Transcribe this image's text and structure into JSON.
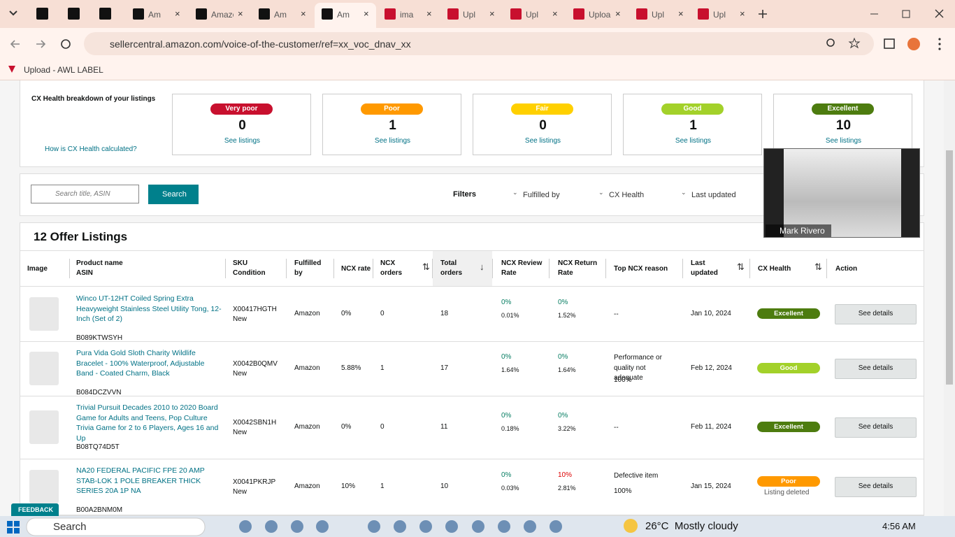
{
  "browser": {
    "tabs": [
      "Am",
      "Amazon",
      "Am",
      "Am",
      "ima",
      "Upl",
      "Upl",
      "Upload",
      "Upl",
      "Upl"
    ],
    "url": "sellercentral.amazon.com/voice-of-the-customer/ref=xx_voc_dnav_xx",
    "bookmark": "Upload - AWL LABEL"
  },
  "health": {
    "title": "CX Health breakdown of your listings",
    "help": "How is CX Health calculated?",
    "cards": [
      {
        "label": "Very poor",
        "color": "#c8102e",
        "count": "0",
        "link": "See listings"
      },
      {
        "label": "Poor",
        "color": "#ff9900",
        "count": "1",
        "link": "See listings"
      },
      {
        "label": "Fair",
        "color": "#ffd000",
        "count": "0",
        "link": "See listings"
      },
      {
        "label": "Good",
        "color": "#a3d12a",
        "count": "1",
        "link": "See listings"
      },
      {
        "label": "Excellent",
        "color": "#4d7c0f",
        "count": "10",
        "link": "See listings"
      }
    ]
  },
  "search": {
    "placeholder": "Search title, ASIN",
    "button": "Search",
    "filters_label": "Filters",
    "filters": [
      "Fulfilled by",
      "CX Health",
      "Last updated"
    ]
  },
  "video": {
    "name": "Mark Rivero"
  },
  "listings": {
    "title": "12 Offer Listings",
    "columns": [
      "Image",
      "Product name\nASIN",
      "SKU\nCondition",
      "Fulfilled\nby",
      "NCX rate",
      "NCX\norders",
      "Total\norders",
      "NCX Review\nRate",
      "NCX Return\nRate",
      "Top NCX reason",
      "Last\nupdated",
      "CX Health",
      "Action"
    ],
    "rows": [
      {
        "product": "Winco UT-12HT Coiled Spring Extra Heavyweight Stainless Steel Utility Tong, 12-Inch (Set of 2)",
        "asin": "B089KTWSYH",
        "sku": "X00417HGTH",
        "condition": "New",
        "fulfilled": "Amazon",
        "ncx_rate": "0%",
        "ncx_orders": "0",
        "total_orders": "18",
        "review_rate": [
          "0%",
          "0.01%"
        ],
        "return_rate": [
          "0%",
          "1.52%"
        ],
        "reason": [
          "--"
        ],
        "updated": "Jan 10, 2024",
        "health": "Excellent",
        "action": "See details"
      },
      {
        "product": "Pura Vida Gold Sloth Charity Wildlife Bracelet - 100% Waterproof, Adjustable Band - Coated Charm, Black",
        "asin": "B084DCZVVN",
        "sku": "X0042B0QMV",
        "condition": "New",
        "fulfilled": "Amazon",
        "ncx_rate": "5.88%",
        "ncx_orders": "1",
        "total_orders": "17",
        "review_rate": [
          "0%",
          "1.64%"
        ],
        "return_rate": [
          "0%",
          "1.64%"
        ],
        "reason": [
          "Performance or quality not adequate",
          "100%"
        ],
        "updated": "Feb 12, 2024",
        "health": "Good",
        "action": "See details"
      },
      {
        "product": "Trivial Pursuit Decades 2010 to 2020 Board Game for Adults and Teens, Pop Culture Trivia Game for 2 to 6 Players, Ages 16 and Up",
        "asin": "B08TQ74D5T",
        "sku": "X0042SBN1H",
        "condition": "New",
        "fulfilled": "Amazon",
        "ncx_rate": "0%",
        "ncx_orders": "0",
        "total_orders": "11",
        "review_rate": [
          "0%",
          "0.18%"
        ],
        "return_rate": [
          "0%",
          "3.22%"
        ],
        "reason": [
          "--"
        ],
        "updated": "Feb 11, 2024",
        "health": "Excellent",
        "action": "See details"
      },
      {
        "product": "NA20 FEDERAL PACIFIC FPE 20 AMP STAB-LOK 1 POLE BREAKER THICK SERIES 20A 1P NA",
        "asin": "B00A2BNM0M",
        "sku": "X0041PKRJP",
        "condition": "New",
        "fulfilled": "Amazon",
        "ncx_rate": "10%",
        "ncx_orders": "1",
        "total_orders": "10",
        "review_rate": [
          "0%",
          "0.03%"
        ],
        "return_rate": [
          "10%",
          "2.81%"
        ],
        "reason": [
          "Defective item",
          "100%"
        ],
        "updated": "Jan 15, 2024",
        "health": "Poor",
        "note": "Listing deleted",
        "action": "See details"
      }
    ]
  },
  "feedback": "FEEDBACK",
  "taskbar": {
    "search": "Search",
    "weather": "26°C  Mostly cloudy",
    "time": "4:56 AM"
  }
}
